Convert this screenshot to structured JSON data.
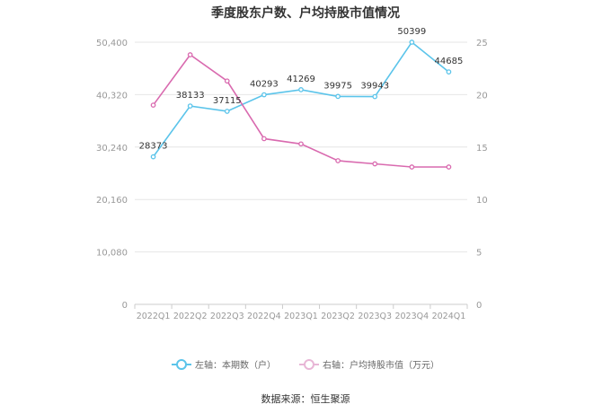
{
  "title": "季度股东户数、户均持股市值情况",
  "source": "数据来源：恒生聚源",
  "legend": {
    "left_label": "左轴：本期数（户）",
    "right_label": "右轴：户均持股市值（万元）"
  },
  "colors": {
    "left_series": "#5bc4ea",
    "right_series": "#d96aaf",
    "grid": "#e6e6e6",
    "axis_text": "#999999",
    "label_text": "#333333"
  },
  "chart_data": {
    "type": "line",
    "categories": [
      "2022Q1",
      "2022Q2",
      "2022Q3",
      "2022Q4",
      "2023Q1",
      "2023Q2",
      "2023Q3",
      "2023Q4",
      "2024Q1"
    ],
    "series": [
      {
        "name": "左轴：本期数（户）",
        "axis": "left",
        "values": [
          28373,
          38133,
          37115,
          40293,
          41269,
          39975,
          39943,
          50399,
          44685
        ],
        "labels": [
          "28373",
          "38133",
          "37115",
          "40293",
          "41269",
          "39975",
          "39943",
          "50399",
          "44685"
        ]
      },
      {
        "name": "右轴：户均持股市值（万元）",
        "axis": "right",
        "values": [
          19.0,
          23.8,
          21.3,
          15.8,
          15.3,
          13.7,
          13.4,
          13.1,
          13.1
        ]
      }
    ],
    "left_axis": {
      "ticks": [
        0,
        10080,
        20160,
        30240,
        40320,
        50400
      ],
      "tick_labels": [
        "0",
        "10,080",
        "20,160",
        "30,240",
        "40,320",
        "50,400"
      ],
      "ylim": [
        0,
        50400
      ]
    },
    "right_axis": {
      "ticks": [
        0,
        5,
        10,
        15,
        20,
        25
      ],
      "tick_labels": [
        "0",
        "5",
        "10",
        "15",
        "20",
        "25"
      ],
      "ylim": [
        0,
        25
      ]
    },
    "grid": true,
    "legend_position": "bottom"
  }
}
